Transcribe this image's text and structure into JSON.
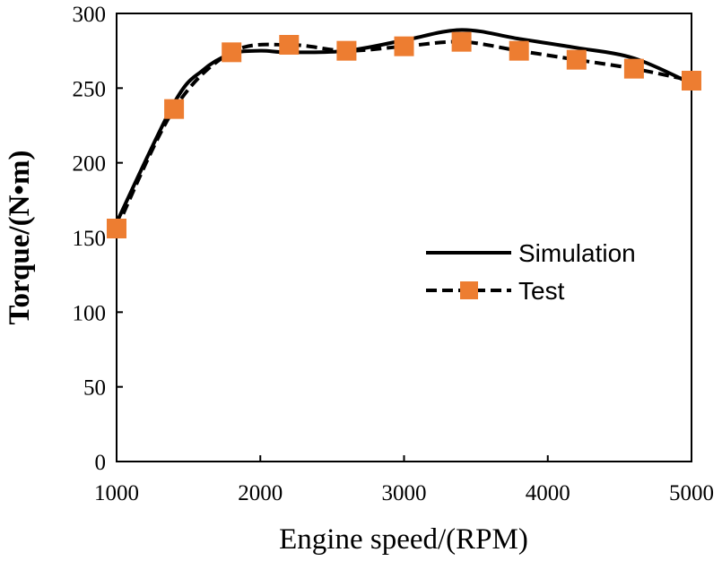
{
  "chart_data": {
    "type": "line",
    "title": "",
    "xlabel": "Engine speed/(RPM)",
    "ylabel": "Torque/(N•m)",
    "xlim": [
      1000,
      5000
    ],
    "ylim": [
      0,
      300
    ],
    "xticks": [
      "1000",
      "2000",
      "3000",
      "4000",
      "5000"
    ],
    "yticks": [
      "0",
      "50",
      "100",
      "150",
      "200",
      "250",
      "300"
    ],
    "grid": false,
    "legend_position": "center-right",
    "series": [
      {
        "name": "Simulation",
        "style": "solid",
        "color": "#000000",
        "x": [
          1000,
          1400,
          1600,
          1800,
          2000,
          2200,
          2600,
          3000,
          3400,
          3800,
          4200,
          4600,
          5000
        ],
        "y": [
          160,
          240,
          262,
          273,
          275,
          274,
          275,
          282,
          289,
          283,
          277,
          270,
          253
        ]
      },
      {
        "name": "Test",
        "style": "dashed",
        "color": "#000000",
        "marker_color": "#ED7D31",
        "marker": "square",
        "x": [
          1000,
          1400,
          1800,
          2200,
          2600,
          3000,
          3400,
          3800,
          4200,
          4600,
          5000
        ],
        "y": [
          156,
          236,
          274,
          279,
          275,
          278,
          281,
          275,
          269,
          263,
          255
        ]
      }
    ]
  }
}
